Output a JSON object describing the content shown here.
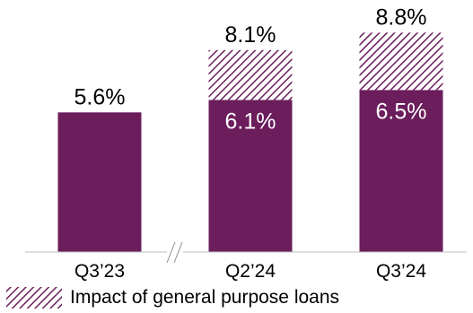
{
  "chart_data": {
    "type": "bar",
    "stacked": true,
    "categories": [
      "Q3’23",
      "Q2’24",
      "Q3’24"
    ],
    "series": [
      {
        "name": "",
        "values": [
          5.6,
          6.1,
          6.5
        ],
        "color": "#6b1d5c"
      },
      {
        "name": "Impact of general purpose loans",
        "values": [
          0,
          2.0,
          2.3
        ],
        "color": "#6b1d5c",
        "pattern": "diagonal-hatch"
      }
    ],
    "totals": [
      5.6,
      8.1,
      8.8
    ],
    "segment_labels": [
      "",
      "6.1%",
      "6.5%"
    ],
    "total_labels": [
      "5.6%",
      "8.1%",
      "8.8%"
    ],
    "axis_break_between": [
      "Q3’23",
      "Q2’24"
    ],
    "ylim": [
      0,
      9.3
    ],
    "legend": {
      "position": "bottom-left",
      "label": "Impact of general purpose loans"
    },
    "grid": false
  }
}
